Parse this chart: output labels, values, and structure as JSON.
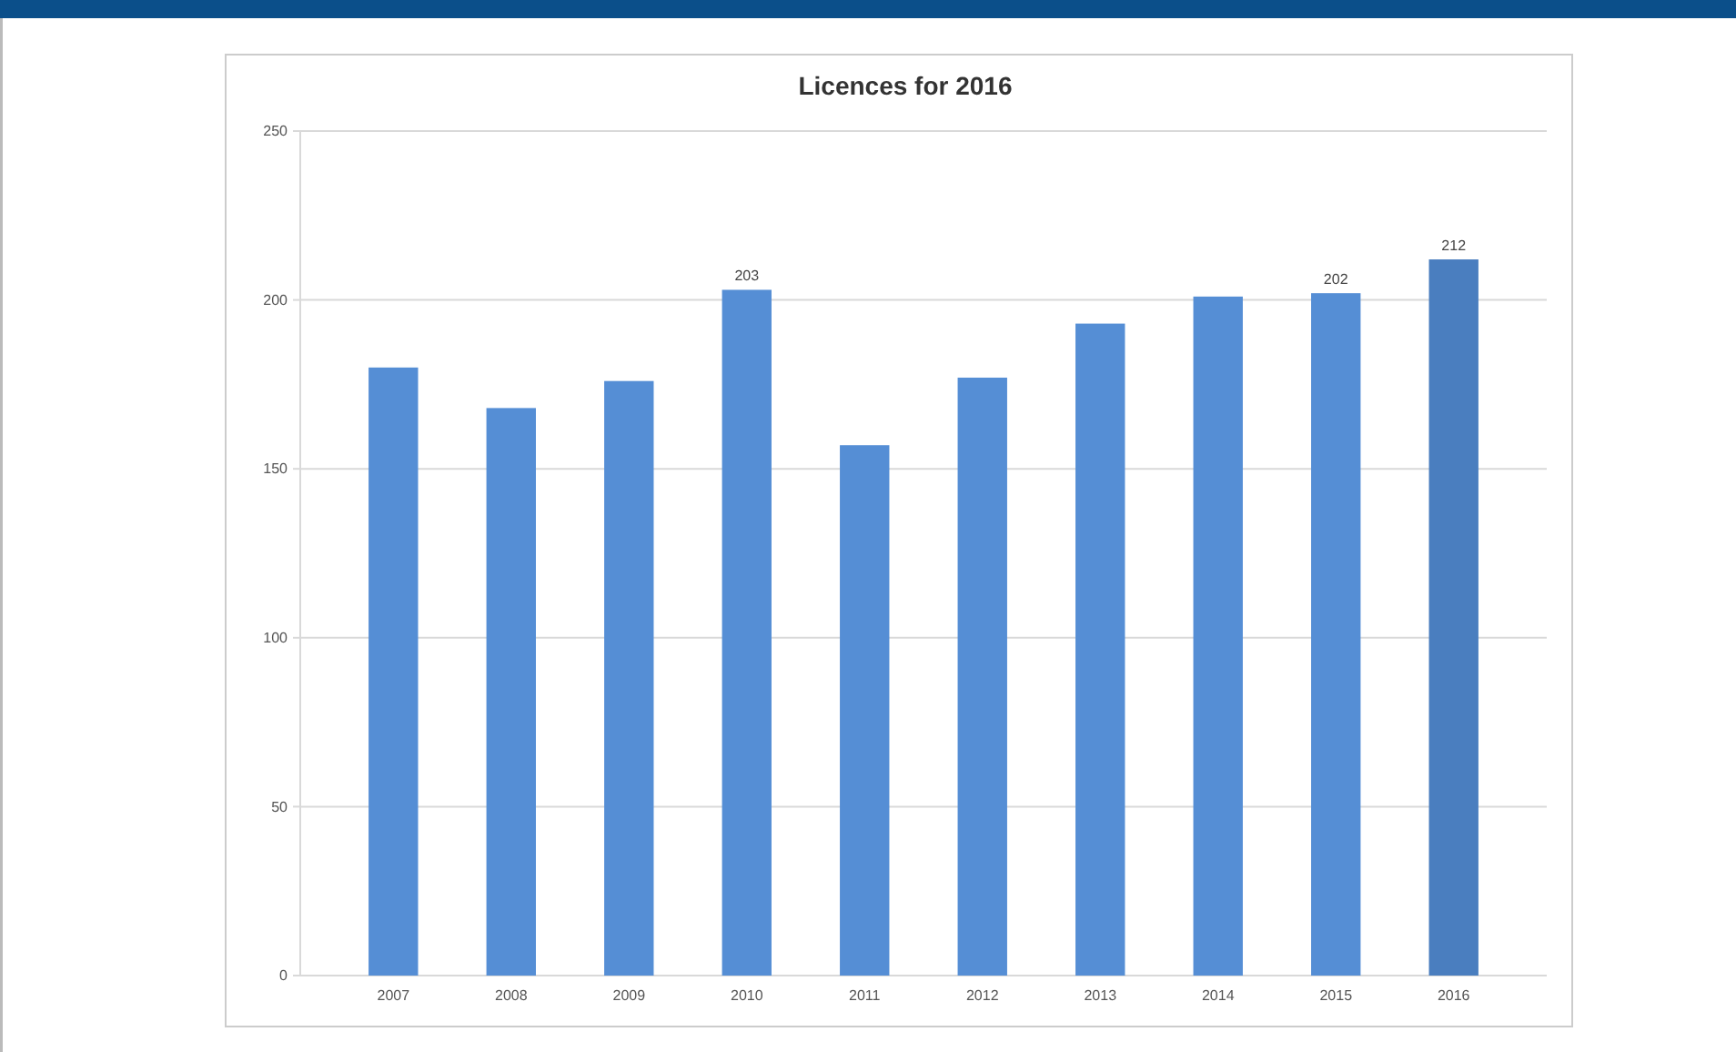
{
  "chart_data": {
    "type": "bar",
    "title": "Licences for 2016",
    "categories": [
      "2007",
      "2008",
      "2009",
      "2010",
      "2011",
      "2012",
      "2013",
      "2014",
      "2015",
      "2016"
    ],
    "values": [
      180,
      168,
      176,
      203,
      157,
      177,
      193,
      201,
      202,
      212
    ],
    "colors": [
      "#558ed5",
      "#558ed5",
      "#558ed5",
      "#558ed5",
      "#558ed5",
      "#558ed5",
      "#558ed5",
      "#558ed5",
      "#558ed5",
      "#4a7ebf"
    ],
    "value_labels": [
      null,
      null,
      null,
      "203",
      null,
      null,
      null,
      null,
      "202",
      "212"
    ],
    "ylim": [
      0,
      250
    ],
    "yticks": [
      0,
      50,
      100,
      150,
      200,
      250
    ],
    "grid": "y"
  }
}
